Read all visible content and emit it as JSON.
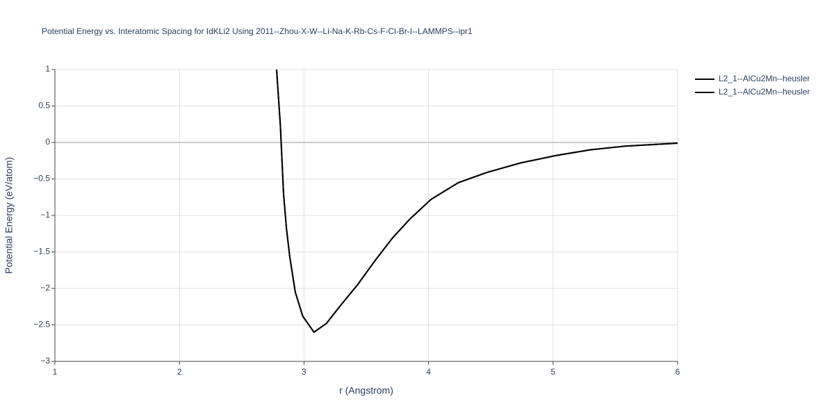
{
  "chart_data": {
    "type": "line",
    "title": "Potential Energy vs. Interatomic Spacing for IdKLi2 Using 2011--Zhou-X-W--Li-Na-K-Rb-Cs-F-Cl-Br-I--LAMMPS--ipr1",
    "x_label": "r (Angstrom)",
    "y_label": "Potential Energy (eV/atom)",
    "x": [
      2.78,
      2.81,
      2.836,
      2.86,
      2.886,
      2.93,
      2.99,
      3.08,
      3.18,
      3.29,
      3.43,
      3.57,
      3.71,
      3.85,
      4.02,
      4.24,
      4.47,
      4.74,
      5.02,
      5.3,
      5.58,
      6.0
    ],
    "series": [
      {
        "name": "L2_1--AlCu2Mn--heusler",
        "color": "#000000",
        "values": [
          1,
          0.24,
          -0.71,
          -1.19,
          -1.57,
          -2.05,
          -2.38,
          -2.6,
          -2.48,
          -2.24,
          -1.95,
          -1.62,
          -1.31,
          -1.05,
          -0.78,
          -0.55,
          -0.41,
          -0.28,
          -0.18,
          -0.1,
          -0.05,
          -0.01
        ]
      },
      {
        "name": "L2_1--AlCu2Mn--heusler",
        "color": "#000000",
        "values": [
          1,
          0.24,
          -0.71,
          -1.19,
          -1.57,
          -2.05,
          -2.38,
          -2.6,
          -2.48,
          -2.24,
          -1.95,
          -1.62,
          -1.31,
          -1.05,
          -0.78,
          -0.55,
          -0.41,
          -0.28,
          -0.18,
          -0.1,
          -0.05,
          -0.01
        ]
      }
    ],
    "xlim": [
      1,
      6
    ],
    "xticks": [
      1,
      2,
      3,
      4,
      5,
      6
    ],
    "ylim": [
      -3,
      1
    ],
    "yticks": [
      {
        "value": -3,
        "label": "−3"
      },
      {
        "value": -2.5,
        "label": "−2.5"
      },
      {
        "value": -2,
        "label": "−2"
      },
      {
        "value": -1.5,
        "label": "−1.5"
      },
      {
        "value": -1,
        "label": "−1"
      },
      {
        "value": -0.5,
        "label": "−0.5"
      },
      0,
      0.5,
      1
    ],
    "grid": true,
    "legend": "right"
  }
}
